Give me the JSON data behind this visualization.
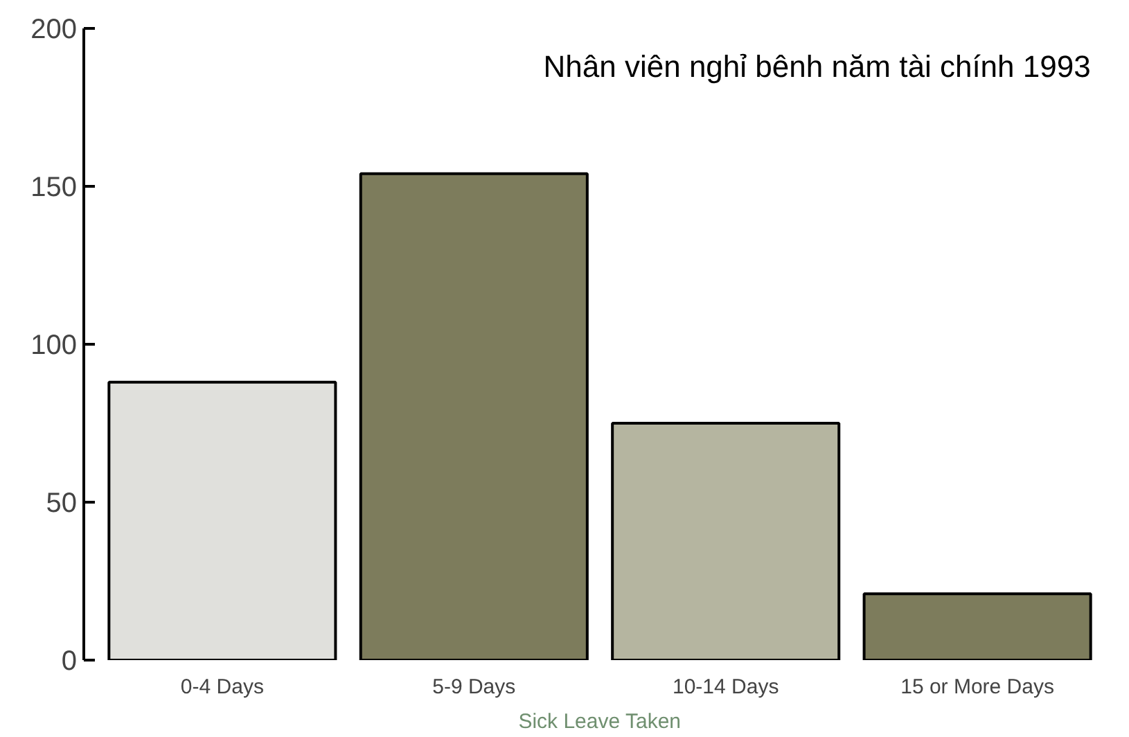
{
  "chart_data": {
    "type": "bar",
    "title": "Nhân viên nghỉ bênh năm tài chính 1993",
    "xlabel": "Sick Leave Taken",
    "categories": [
      "0-4 Days",
      "5-9 Days",
      "10-14 Days",
      "15 or More Days"
    ],
    "values": [
      88,
      154,
      75,
      21
    ],
    "colors": [
      "#e0e0dc",
      "#7d7c5c",
      "#b5b5a0",
      "#7d7c5c"
    ],
    "ylim": [
      0,
      200
    ],
    "yticks": [
      0,
      50,
      100,
      150,
      200
    ],
    "grid": false
  }
}
